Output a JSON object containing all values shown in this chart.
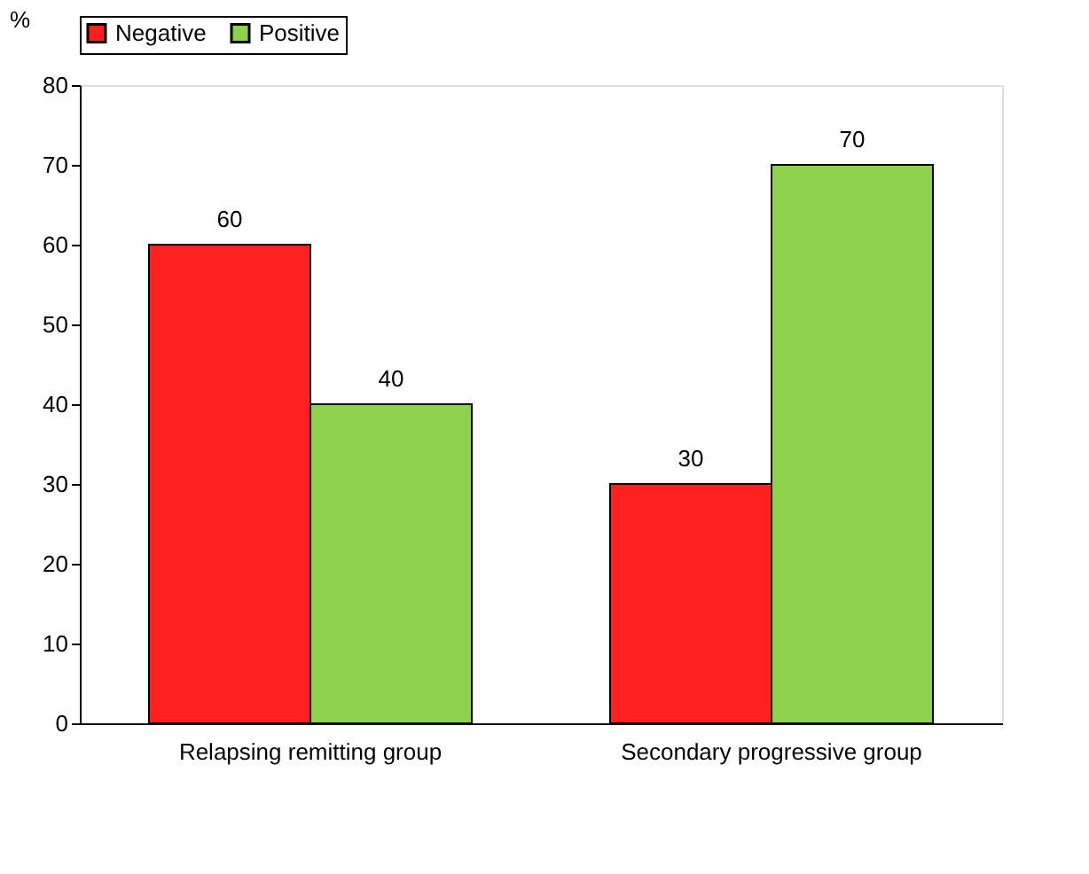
{
  "chart_data": {
    "type": "bar",
    "ylabel": "%",
    "categories": [
      "Relapsing remitting group",
      "Secondary progressive group"
    ],
    "series": [
      {
        "name": "Negative",
        "color": "#ff2020",
        "values": [
          60,
          30
        ]
      },
      {
        "name": "Positive",
        "color": "#8fd14f",
        "values": [
          40,
          70
        ]
      }
    ],
    "ylim": [
      0,
      80
    ],
    "yticks": [
      0,
      10,
      20,
      30,
      40,
      50,
      60,
      70,
      80
    ],
    "data_labels": true,
    "legend": "top",
    "grid": false
  }
}
